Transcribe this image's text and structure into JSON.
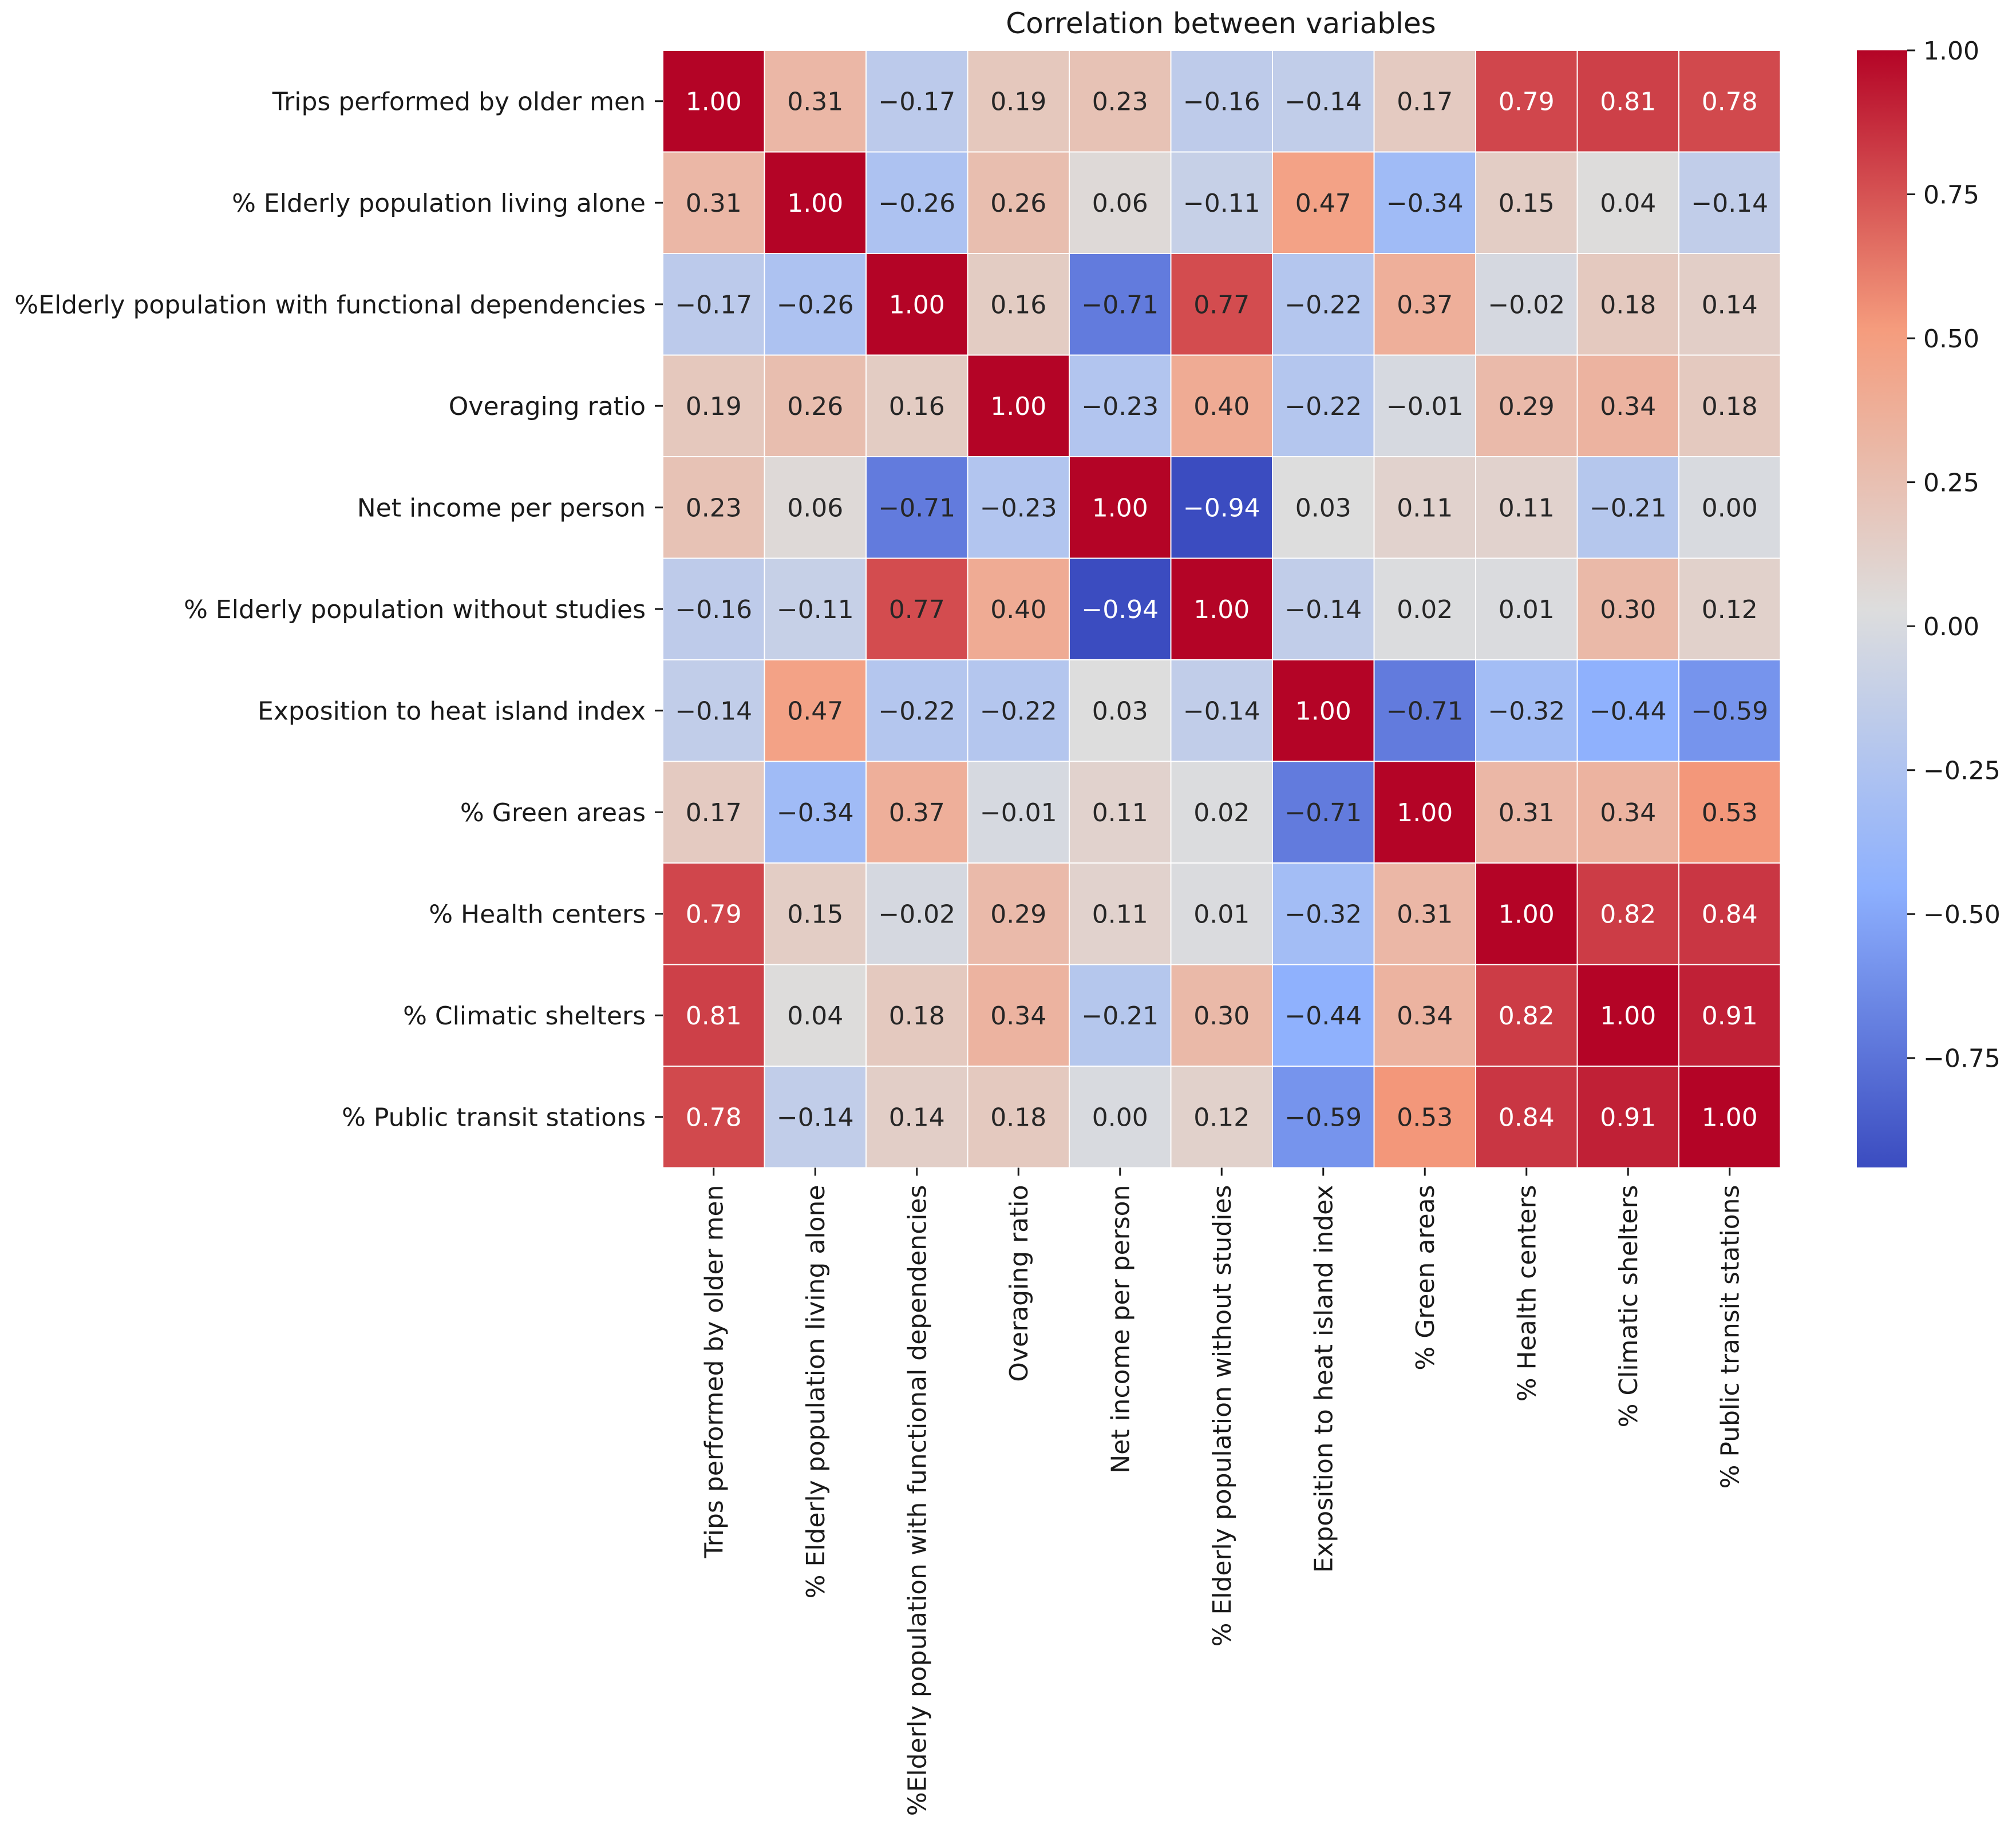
{
  "chart_data": {
    "type": "heatmap",
    "title": "Correlation between variables",
    "colormap": "coolwarm",
    "row_labels": [
      "Trips performed by older men",
      "% Elderly population living alone",
      "%Elderly population with functional dependencies",
      "Overaging ratio",
      "Net income per person",
      "% Elderly population without studies",
      "Exposition to heat island index",
      "% Green areas",
      "% Health centers",
      "% Climatic shelters",
      "% Public transit stations"
    ],
    "col_labels": [
      "Trips performed by older men",
      "% Elderly population living alone",
      "%Elderly population with functional dependencies",
      "Overaging ratio",
      "Net income per person",
      "% Elderly population without studies",
      "Exposition to heat island index",
      "% Green areas",
      "% Health centers",
      "% Climatic shelters",
      "% Public transit stations"
    ],
    "matrix": [
      [
        1.0,
        0.31,
        -0.17,
        0.19,
        0.23,
        -0.16,
        -0.14,
        0.17,
        0.79,
        0.81,
        0.78
      ],
      [
        0.31,
        1.0,
        -0.26,
        0.26,
        0.06,
        -0.11,
        0.47,
        -0.34,
        0.15,
        0.04,
        -0.14
      ],
      [
        -0.17,
        -0.26,
        1.0,
        0.16,
        -0.71,
        0.77,
        -0.22,
        0.37,
        -0.02,
        0.18,
        0.14
      ],
      [
        0.19,
        0.26,
        0.16,
        1.0,
        -0.23,
        0.4,
        -0.22,
        -0.01,
        0.29,
        0.34,
        0.18
      ],
      [
        0.23,
        0.06,
        -0.71,
        -0.23,
        1.0,
        -0.94,
        0.03,
        0.11,
        0.11,
        -0.21,
        0.0
      ],
      [
        -0.16,
        -0.11,
        0.77,
        0.4,
        -0.94,
        1.0,
        -0.14,
        0.02,
        0.01,
        0.3,
        0.12
      ],
      [
        -0.14,
        0.47,
        -0.22,
        -0.22,
        0.03,
        -0.14,
        1.0,
        -0.71,
        -0.32,
        -0.44,
        -0.59
      ],
      [
        0.17,
        -0.34,
        0.37,
        -0.01,
        0.11,
        0.02,
        -0.71,
        1.0,
        0.31,
        0.34,
        0.53
      ],
      [
        0.79,
        0.15,
        -0.02,
        0.29,
        0.11,
        0.01,
        -0.32,
        0.31,
        1.0,
        0.82,
        0.84
      ],
      [
        0.81,
        0.04,
        0.18,
        0.34,
        -0.21,
        0.3,
        -0.44,
        0.34,
        0.82,
        1.0,
        0.91
      ],
      [
        0.78,
        -0.14,
        0.14,
        0.18,
        0.0,
        0.12,
        -0.59,
        0.53,
        0.84,
        0.91,
        1.0
      ]
    ],
    "vmin": -0.94,
    "vmax": 1.0,
    "colorbar": {
      "ticks": [
        1.0,
        0.75,
        0.5,
        0.25,
        0.0,
        -0.25,
        -0.5,
        -0.75
      ],
      "tick_labels": [
        "1.00",
        "0.75",
        "0.50",
        "0.25",
        "0.00",
        "−0.25",
        "−0.50",
        "−0.75"
      ]
    },
    "annotations": true,
    "number_format": "0.00",
    "grid": false,
    "legend": "colorbar-right"
  }
}
